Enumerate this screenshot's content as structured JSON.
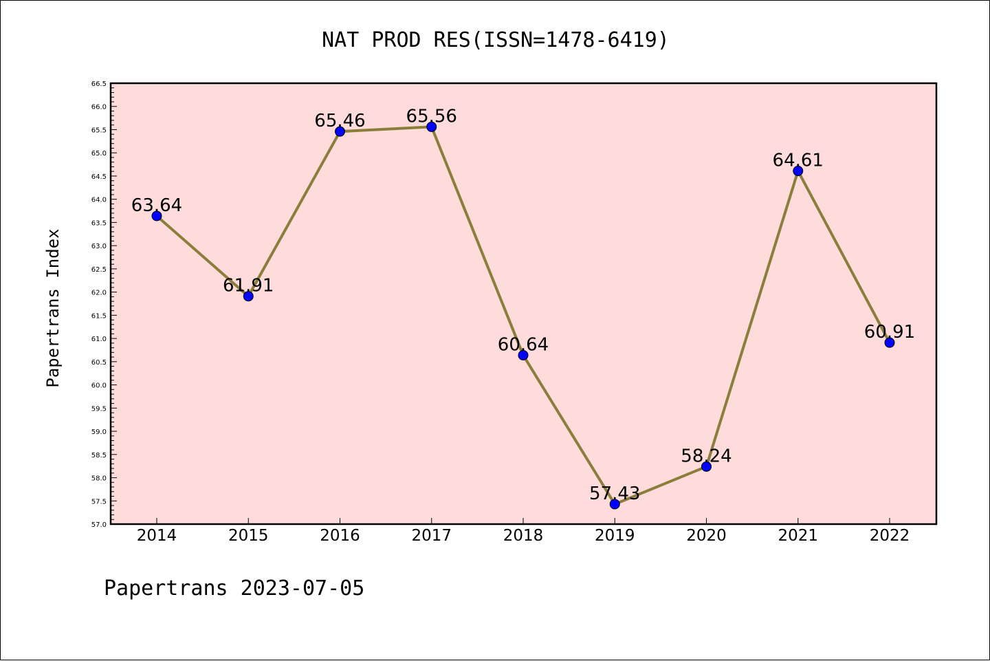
{
  "chart_data": {
    "type": "line",
    "title": "NAT PROD RES(ISSN=1478-6419)",
    "ylabel": "Papertrans Index",
    "xlabel": "",
    "footer": "Papertrans 2023-07-05",
    "categories": [
      "2014",
      "2015",
      "2016",
      "2017",
      "2018",
      "2019",
      "2020",
      "2021",
      "2022"
    ],
    "series": [
      {
        "values": [
          63.64,
          61.91,
          65.46,
          65.56,
          60.64,
          57.43,
          58.24,
          64.61,
          60.91
        ],
        "labels": [
          "63.64",
          "61.91",
          "65.46",
          "65.56",
          "60.64",
          "57.43",
          "58.24",
          "64.61",
          "60.91"
        ]
      }
    ],
    "ylim": [
      57.0,
      66.5
    ],
    "yticks": [
      "57.0",
      "57.5",
      "58.0",
      "58.5",
      "59.0",
      "59.5",
      "60.0",
      "60.5",
      "61.0",
      "61.5",
      "62.0",
      "62.5",
      "63.0",
      "63.5",
      "64.0",
      "64.5",
      "65.0",
      "65.5",
      "66.0",
      "66.5"
    ],
    "grid": false,
    "colors": {
      "plot_background": "#fddcdb",
      "line": "#8b7d3a",
      "marker": "#0000ff"
    }
  }
}
